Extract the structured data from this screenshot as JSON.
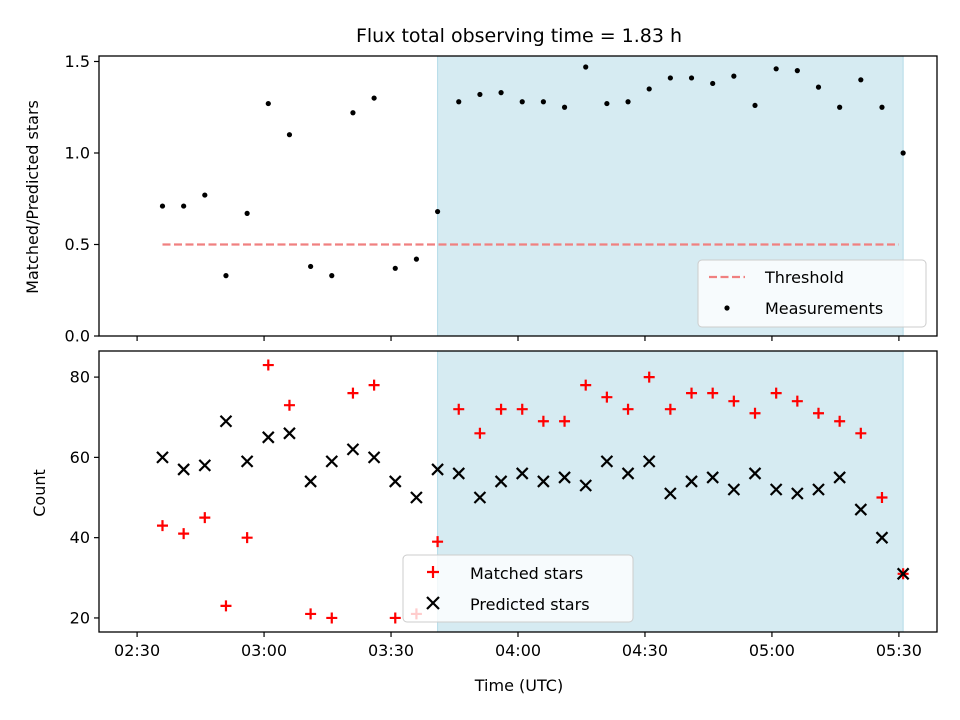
{
  "chart_data": [
    {
      "type": "scatter",
      "title": "Flux total observing time = 1.83 h",
      "xlabel": "",
      "ylabel": "Matched/Predicted stars",
      "xlim": [
        "02:21",
        "05:39"
      ],
      "ylim": [
        0,
        1.53
      ],
      "yticks": [
        0.0,
        0.5,
        1.0,
        1.5
      ],
      "ytick_labels": [
        "0.0",
        "0.5",
        "1.0",
        "1.5"
      ],
      "shaded_region": {
        "from": "03:41",
        "to": "05:31",
        "color": "#add8e6"
      },
      "threshold": {
        "name": "Threshold",
        "value": 0.5,
        "from": "02:36",
        "to": "05:30",
        "color": "#f08080"
      },
      "legend_position": "lower right",
      "series": [
        {
          "name": "Measurements",
          "color": "#000000",
          "marker": "dot",
          "points": [
            [
              "02:36",
              0.71
            ],
            [
              "02:41",
              0.71
            ],
            [
              "02:46",
              0.77
            ],
            [
              "02:51",
              0.33
            ],
            [
              "02:56",
              0.67
            ],
            [
              "03:01",
              1.27
            ],
            [
              "03:06",
              1.1
            ],
            [
              "03:11",
              0.38
            ],
            [
              "03:16",
              0.33
            ],
            [
              "03:21",
              1.22
            ],
            [
              "03:26",
              1.3
            ],
            [
              "03:31",
              0.37
            ],
            [
              "03:36",
              0.42
            ],
            [
              "03:41",
              0.68
            ],
            [
              "03:46",
              1.28
            ],
            [
              "03:51",
              1.32
            ],
            [
              "03:56",
              1.33
            ],
            [
              "04:01",
              1.28
            ],
            [
              "04:06",
              1.28
            ],
            [
              "04:11",
              1.25
            ],
            [
              "04:16",
              1.47
            ],
            [
              "04:21",
              1.27
            ],
            [
              "04:26",
              1.28
            ],
            [
              "04:31",
              1.35
            ],
            [
              "04:36",
              1.41
            ],
            [
              "04:41",
              1.41
            ],
            [
              "04:46",
              1.38
            ],
            [
              "04:51",
              1.42
            ],
            [
              "04:56",
              1.26
            ],
            [
              "05:01",
              1.46
            ],
            [
              "05:06",
              1.45
            ],
            [
              "05:11",
              1.36
            ],
            [
              "05:16",
              1.25
            ],
            [
              "05:21",
              1.4
            ],
            [
              "05:26",
              1.25
            ],
            [
              "05:31",
              1.0
            ]
          ]
        }
      ]
    },
    {
      "type": "scatter",
      "title": "",
      "xlabel": "Time (UTC)",
      "ylabel": "Count",
      "xlim": [
        "02:21",
        "05:39"
      ],
      "ylim": [
        16.5,
        86.5
      ],
      "yticks": [
        20,
        40,
        60,
        80
      ],
      "ytick_labels": [
        "20",
        "40",
        "60",
        "80"
      ],
      "xticks": [
        "02:30",
        "03:00",
        "03:30",
        "04:00",
        "04:30",
        "05:00",
        "05:30"
      ],
      "xtick_labels": [
        "02:30",
        "03:00",
        "03:30",
        "04:00",
        "04:30",
        "05:00",
        "05:30"
      ],
      "shaded_region": {
        "from": "03:41",
        "to": "05:31",
        "color": "#add8e6"
      },
      "legend_position": "lower center",
      "series": [
        {
          "name": "Matched stars",
          "color": "#ff0000",
          "marker": "plus",
          "points": [
            [
              "02:36",
              43
            ],
            [
              "02:41",
              41
            ],
            [
              "02:46",
              45
            ],
            [
              "02:51",
              23
            ],
            [
              "02:56",
              40
            ],
            [
              "03:01",
              83
            ],
            [
              "03:06",
              73
            ],
            [
              "03:11",
              21
            ],
            [
              "03:16",
              20
            ],
            [
              "03:21",
              76
            ],
            [
              "03:26",
              78
            ],
            [
              "03:31",
              20
            ],
            [
              "03:36",
              21
            ],
            [
              "03:41",
              39
            ],
            [
              "03:46",
              72
            ],
            [
              "03:51",
              66
            ],
            [
              "03:56",
              72
            ],
            [
              "04:01",
              72
            ],
            [
              "04:06",
              69
            ],
            [
              "04:11",
              69
            ],
            [
              "04:16",
              78
            ],
            [
              "04:21",
              75
            ],
            [
              "04:26",
              72
            ],
            [
              "04:31",
              80
            ],
            [
              "04:36",
              72
            ],
            [
              "04:41",
              76
            ],
            [
              "04:46",
              76
            ],
            [
              "04:51",
              74
            ],
            [
              "04:56",
              71
            ],
            [
              "05:01",
              76
            ],
            [
              "05:06",
              74
            ],
            [
              "05:11",
              71
            ],
            [
              "05:16",
              69
            ],
            [
              "05:21",
              66
            ],
            [
              "05:26",
              50
            ],
            [
              "05:31",
              31
            ]
          ]
        },
        {
          "name": "Predicted stars",
          "color": "#000000",
          "marker": "x",
          "points": [
            [
              "02:36",
              60
            ],
            [
              "02:41",
              57
            ],
            [
              "02:46",
              58
            ],
            [
              "02:51",
              69
            ],
            [
              "02:56",
              59
            ],
            [
              "03:01",
              65
            ],
            [
              "03:06",
              66
            ],
            [
              "03:11",
              54
            ],
            [
              "03:16",
              59
            ],
            [
              "03:21",
              62
            ],
            [
              "03:26",
              60
            ],
            [
              "03:31",
              54
            ],
            [
              "03:36",
              50
            ],
            [
              "03:41",
              57
            ],
            [
              "03:46",
              56
            ],
            [
              "03:51",
              50
            ],
            [
              "03:56",
              54
            ],
            [
              "04:01",
              56
            ],
            [
              "04:06",
              54
            ],
            [
              "04:11",
              55
            ],
            [
              "04:16",
              53
            ],
            [
              "04:21",
              59
            ],
            [
              "04:26",
              56
            ],
            [
              "04:31",
              59
            ],
            [
              "04:36",
              51
            ],
            [
              "04:41",
              54
            ],
            [
              "04:46",
              55
            ],
            [
              "04:51",
              52
            ],
            [
              "04:56",
              56
            ],
            [
              "05:01",
              52
            ],
            [
              "05:06",
              51
            ],
            [
              "05:11",
              52
            ],
            [
              "05:16",
              55
            ],
            [
              "05:21",
              47
            ],
            [
              "05:26",
              40
            ],
            [
              "05:31",
              31
            ]
          ]
        }
      ]
    }
  ]
}
